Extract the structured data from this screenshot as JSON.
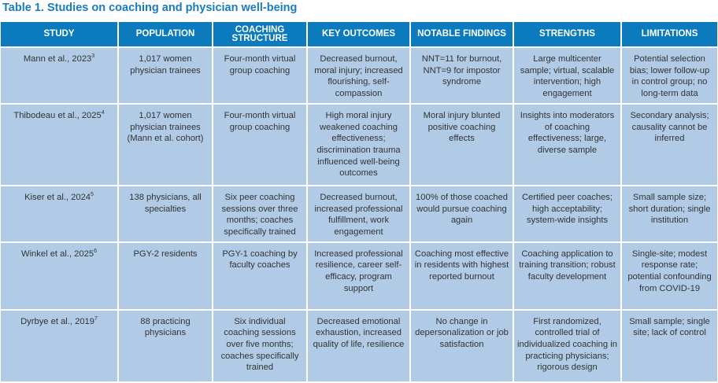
{
  "title": "Table 1. Studies on coaching and physician well-being",
  "headers": [
    "STUDY",
    "POPULATION",
    "COACHING STRUCTURE",
    "KEY OUTCOMES",
    "NOTABLE FINDINGS",
    "STRENGTHS",
    "LIMITATIONS"
  ],
  "rows": [
    {
      "study": "Mann et al., 2023",
      "ref": "3",
      "population": "1,017 women physician trainees",
      "structure": "Four-month virtual group coaching",
      "outcomes": "Decreased burnout, moral injury; increased flourishing, self-compassion",
      "findings": "NNT=11 for burnout, NNT=9 for impostor syndrome",
      "strengths": "Large multicenter sample; virtual, scalable intervention; high engagement",
      "limitations": "Potential selection bias; lower follow-up in control group; no long-term data"
    },
    {
      "study": "Thibodeau et al., 2025",
      "ref": "4",
      "population": "1,017 women physician trainees (Mann et al. cohort)",
      "structure": "Four-month virtual group coaching",
      "outcomes": "High moral injury weakened coaching effectiveness; discrimination trauma influenced well-being outcomes",
      "findings": "Moral injury blunted positive coaching effects",
      "strengths": "Insights into moderators of coaching effectiveness; large, diverse sample",
      "limitations": "Secondary analysis; causality cannot be inferred"
    },
    {
      "study": "Kiser et al., 2024",
      "ref": "5",
      "population": "138 physicians, all specialties",
      "structure": "Six peer coaching sessions over three months; coaches specifically trained",
      "outcomes": "Decreased burnout, increased professional fulfillment, work engagement",
      "findings": "100% of those coached would pursue coaching again",
      "strengths": "Certified peer coaches; high acceptability; system-wide insights",
      "limitations": "Small sample size; short duration; single institution"
    },
    {
      "study": "Winkel et al., 2025",
      "ref": "6",
      "population": "PGY-2 residents",
      "structure": "PGY-1 coaching by faculty coaches",
      "outcomes": "Increased professional resilience, career self-efficacy, program support",
      "findings": "Coaching most effective in residents with highest reported burnout",
      "strengths": "Coaching application to training transition; robust faculty development",
      "limitations": "Single-site; modest response rate; potential confounding from COVID-19"
    },
    {
      "study": "Dyrbye et al., 2019",
      "ref": "7",
      "population": "88 practicing physicians",
      "structure": "Six individual coaching sessions over five months; coaches specifically trained",
      "outcomes": "Decreased emotional exhaustion, increased quality of life, resilience",
      "findings": "No change in depersonalization or job satisfaction",
      "strengths": "First randomized, controlled trial of individualized coaching in practicing physicians; rigorous design",
      "limitations": "Small sample; single site; lack of control"
    }
  ]
}
